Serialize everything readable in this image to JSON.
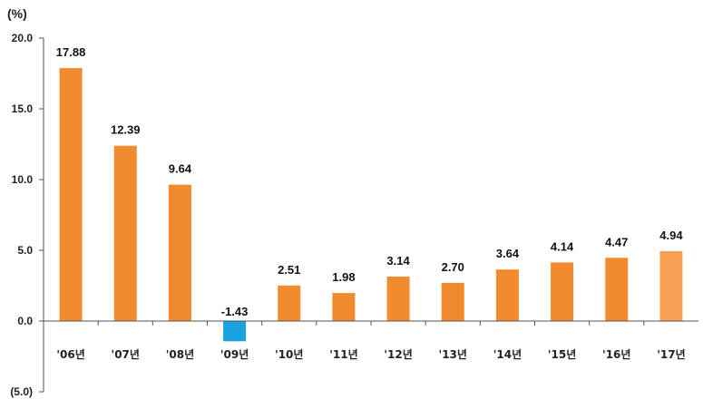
{
  "chart_data": {
    "type": "bar",
    "title": "",
    "unit_label": "(%)",
    "xlabel": "",
    "ylabel": "",
    "ylim": [
      -5,
      20
    ],
    "y_ticks": [
      20,
      15,
      10,
      5,
      0,
      -5
    ],
    "y_tick_labels": [
      "20.0",
      "15.0",
      "10.0",
      "5.0",
      "0.0",
      "(5.0)"
    ],
    "grid": false,
    "categories": [
      "'06년",
      "'07년",
      "'08년",
      "'09년",
      "'10년",
      "'11년",
      "'12년",
      "'13년",
      "'14년",
      "'15년",
      "'16년",
      "'17년"
    ],
    "values": [
      17.88,
      12.39,
      9.64,
      -1.43,
      2.51,
      1.98,
      3.14,
      2.7,
      3.64,
      4.14,
      4.47,
      4.94
    ],
    "value_labels": [
      "17.88",
      "12.39",
      "9.64",
      "-1.43",
      "2.51",
      "1.98",
      "3.14",
      "2.70",
      "3.64",
      "4.14",
      "4.47",
      "4.94"
    ],
    "colors": {
      "positive": "#f28a2e",
      "negative": "#1aa3e0",
      "highlight": "#f9a057",
      "axis": "#555555"
    },
    "highlight_index": 11
  }
}
